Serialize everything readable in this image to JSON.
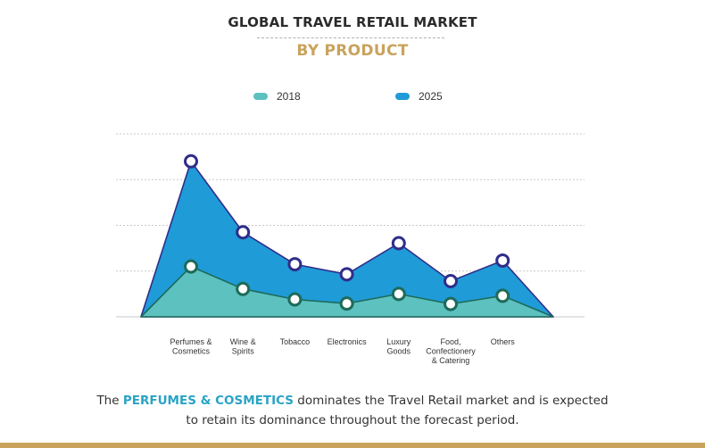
{
  "header": {
    "title": "GLOBAL TRAVEL RETAIL MARKET",
    "subtitle": "BY PRODUCT"
  },
  "legend": [
    {
      "label": "2018",
      "color": "#5cc1bf"
    },
    {
      "label": "2025",
      "color": "#1f9bd8"
    }
  ],
  "chart_data": {
    "type": "area",
    "title": "GLOBAL TRAVEL RETAIL MARKET",
    "subtitle": "BY PRODUCT",
    "categories": [
      "Perfumes & Cosmetics",
      "Wine & Spirits",
      "Tobacco",
      "Electronics",
      "Luxury Goods",
      "Food, Confectionery & Catering",
      "Others"
    ],
    "category_labels": [
      [
        "Perfumes &",
        "Cosmetics"
      ],
      [
        "Wine &",
        "Spirits"
      ],
      [
        "Tobacco"
      ],
      [
        "Electronics"
      ],
      [
        "Luxury",
        "Goods"
      ],
      [
        "Food,",
        "Confectionery",
        "& Catering"
      ],
      [
        "Others"
      ]
    ],
    "series": [
      {
        "name": "2025",
        "values": [
          3.4,
          1.85,
          1.15,
          0.93,
          1.61,
          0.78,
          1.23
        ],
        "color": "#1f9bd8",
        "marker_color": "#2f2e8a"
      },
      {
        "name": "2018",
        "values": [
          1.1,
          0.61,
          0.38,
          0.29,
          0.5,
          0.28,
          0.46
        ],
        "color": "#5cc1bf",
        "marker_color": "#1d6b59"
      }
    ],
    "ylim": [
      0,
      4
    ],
    "gridlines": 4,
    "grid": true,
    "y_axis_labels": false,
    "xlabel": "",
    "ylabel": ""
  },
  "caption": {
    "prefix": "The",
    "highlight": "PERFUMES & COSMETICS",
    "line1_suffix": "dominates the Travel Retail market and is expected",
    "line2": "to retain its dominance throughout the forecast period."
  },
  "colors": {
    "accent": "#c9a35c",
    "highlight": "#2aa3c5"
  }
}
